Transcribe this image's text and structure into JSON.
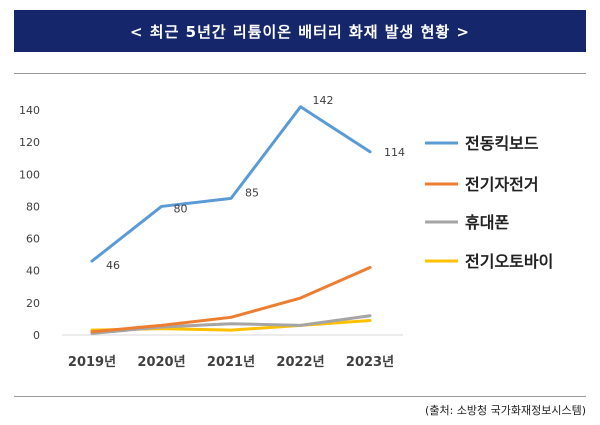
{
  "header": {
    "title": "< 최근 5년간 리튬이온 배터리 화재 발생 현황 >"
  },
  "source": "(출처: 소방청 국가화재정보시스템)",
  "colors": {
    "header_bg": "#16266b",
    "series": [
      "#5b9bd5",
      "#ed7d31",
      "#a5a5a5",
      "#ffc000"
    ]
  },
  "chart_data": {
    "type": "line",
    "title": "",
    "xlabel": "",
    "ylabel": "",
    "categories": [
      "2019년",
      "2020년",
      "2021년",
      "2022년",
      "2023년"
    ],
    "ylim": [
      0,
      140
    ],
    "yticks": [
      "0",
      "20",
      "40",
      "60",
      "80",
      "100",
      "120",
      "140"
    ],
    "grid": false,
    "legend_position": "right",
    "series": [
      {
        "name": "전동킥보드",
        "color": "#5b9bd5",
        "values": [
          46,
          80,
          85,
          142,
          114
        ],
        "labels": [
          "46",
          "80",
          "85",
          "142",
          "114"
        ]
      },
      {
        "name": "전기자전거",
        "color": "#ed7d31",
        "values": [
          2,
          6,
          11,
          23,
          42
        ]
      },
      {
        "name": "휴대폰",
        "color": "#a5a5a5",
        "values": [
          1,
          5,
          7,
          6,
          12
        ]
      },
      {
        "name": "전기오토바이",
        "color": "#ffc000",
        "values": [
          3,
          4,
          3,
          6,
          9
        ]
      }
    ]
  }
}
